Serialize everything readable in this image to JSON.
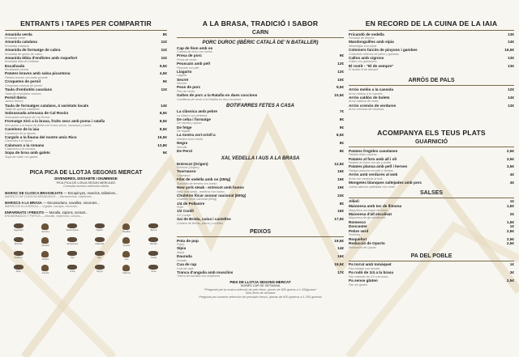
{
  "colors": {
    "background": "#f8f6f1",
    "text": "#1c1c1c",
    "sub": "#7a7a7a",
    "deco": "#d9c9a6"
  },
  "col1": {
    "title": "ENTRANTS I TAPES PER COMPARTIR",
    "items": [
      {
        "name": "Amanida verda",
        "price": "8€",
        "sub": "Ensalada verde"
      },
      {
        "name": "Amanida catalana",
        "price": "11€",
        "sub": "Ensalada catalana"
      },
      {
        "name": "Amanida de formatge de cabra",
        "price": "11€",
        "sub": "Ensalada de queso de cabra"
      },
      {
        "name": "Amanida tèbia d'endívies amb roquefort",
        "price": "11€",
        "sub": "Ensalada tibia de endivias"
      },
      {
        "name": "Escalivada",
        "price": "9,5€",
        "sub": "Escalivada casera"
      },
      {
        "name": "Patates braves amb salsa picantona",
        "price": "4,5€",
        "sub": "Patatas bravas con salsa picante"
      },
      {
        "name": "Croquetes de pernil",
        "price": "9€",
        "sub": "Croquetas caseras de jamón"
      },
      {
        "name": "Taula d'embotits casolans",
        "price": "11€",
        "sub": "Tabla de embutidos caseros"
      },
      {
        "name": "Pernil Ibèric",
        "price": "",
        "sub": "Jamón Ibérico"
      },
      {
        "name": "Taula de formatges catalans, 4 varietats locals",
        "price": "14€",
        "sub": "Tabla de quesos catalanes"
      },
      {
        "name": "Sobrassada artesana de Cal Rovira",
        "price": "8,5€",
        "sub": "Sobrasada artesana de Cal Rovira"
      },
      {
        "name": "Formatge Xiró a la brasa, fruits secs amb poma i ratafia",
        "price": "8,5€",
        "sub": "Xiró queso a la brasa de Alella con frutos secos, manzana y ratafía"
      },
      {
        "name": "Canelons de la iaia",
        "price": "8,5€",
        "sub": "Canelones de la abuela"
      },
      {
        "name": "Cargols a la llauna del nostre amic Rico",
        "price": "16,5€",
        "sub": "Caracoles a la llauna"
      },
      {
        "name": "Calamars a la romana",
        "price": "12,8€",
        "sub": "Calamares a la romana"
      },
      {
        "name": "Sopa de brou amb galets",
        "price": "9€",
        "sub": "Sopa de caldo con galets"
      }
    ],
    "market": {
      "title": "PICA PICA DE LLOTJA SEGONS MERCAT",
      "line1": "DIVENDRES, DISSABTE I DIUMENGE",
      "line2": "PICA PICA DE LONJA SEGÚN MERCADO",
      "line3": "Consulta nuestra selección diaria",
      "entries": [
        {
          "main": "MARISC DE CLOSCA BRASSEJATS",
          "rest": " — Escopinyes, musclos, tallarines...",
          "sub": "MARISCO DE CONCHA BRASEADOS — Berberechos, mejillones..."
        },
        {
          "main": "MARISCS A LA BRASA",
          "rest": " — Escamarlans, navalles, escorxes...",
          "sub": "MARISCOS A LA BRASA — Cigalas, navajas, escorxas..."
        },
        {
          "main": "ENFARINATS I FREGITS",
          "rest": " — Moralla, sipions, sonsos...",
          "sub": "ENHARINADOS Y FRITOS — Moralla, chipirones, sonsos..."
        }
      ],
      "fish": [
        "Llagostins",
        "Gambes",
        "Escamarlans",
        "Cigales",
        "Navalles",
        "Sipions",
        "Musclos",
        "Cloïsses",
        "Escopinyes",
        "Calamars",
        "Sonsos",
        "Moralla",
        "Sardines",
        "Seitons",
        "Pop",
        "Rap",
        "Lluç",
        "Orada",
        "Sípia",
        "Gamba",
        "Cranc",
        "Cargol",
        "Tellerina",
        "Vieira"
      ]
    }
  },
  "col2": {
    "title": "A LA BRASA, TRADICIÓ I SABOR",
    "carn_title": "CARN",
    "porc_title": "PORC DUROC (IBÈRIC CATALÀ DE' N BATALLER)",
    "porc": [
      {
        "name": "Cap de llom amb os",
        "price": "",
        "sub": "Cabeza de lomo con hueso"
      },
      {
        "name": "Presa de porc",
        "price": "9€",
        "sub": "Presa de cerdo"
      },
      {
        "name": "Peuscats amb pell",
        "price": "12€",
        "sub": "Pescues con piel"
      },
      {
        "name": "Llagarto",
        "price": "12€",
        "sub": "Lagarto"
      },
      {
        "name": "Secret",
        "price": "10€",
        "sub": "Secreto"
      },
      {
        "name": "Peus de porc",
        "price": "9,5€",
        "sub": "Pies de cerdo"
      },
      {
        "name": "Galtes de porc a la Ratafia en dues coccions",
        "price": "10,5€",
        "sub": "Carrilleras de cerdo a la Ratafía en dos cocciones"
      }
    ],
    "bot_title": "BOTIFARRES FETES A CASA",
    "bot": [
      {
        "name": "La clàssica amb pebre",
        "price": "7€",
        "sub": "La clásica con pimienta"
      },
      {
        "name": "De ceba i formatge",
        "price": "8€",
        "sub": "De cebolla y queso"
      },
      {
        "name": "De fetge",
        "price": "9€",
        "sub": "De hígado"
      },
      {
        "name": "La nostra xori-crioll a",
        "price": "8,5€",
        "sub": "Nuestra chori-criolla"
      },
      {
        "name": "Negra",
        "price": "8€",
        "sub": "Morcilla"
      },
      {
        "name": "De Perol",
        "price": "8€",
        "sub": ""
      }
    ],
    "vedella_title": "XAI, VEDELLA I AUS A LA BRASA",
    "vedella": [
      {
        "name": "Entrecot (Origen)",
        "price": "12,5€",
        "sub": "Entrecot (Origen)"
      },
      {
        "name": "Tournasso",
        "price": "16€",
        "sub": "Churrasco"
      },
      {
        "name": "Filet de vedella amb os (250g)",
        "price": "19€",
        "sub": "Solomillo de ternera con hueso"
      },
      {
        "name": "New york steak - entrecot amb hueso",
        "price": "19€",
        "sub": "New York steak - entrecot con hueso"
      },
      {
        "name": "Chuleton fòcar asnour nacional (600g)",
        "price": "24€",
        "sub": "Chuletón fócar nacional (600g)"
      },
      {
        "name": "1/4 de Pollastre",
        "price": "8€",
        "sub": "Pollo"
      },
      {
        "name": "1/2 Conill",
        "price": "16€",
        "sub": "1/2 Conejo"
      },
      {
        "name": "Xai de Breda, cuixa i castelles",
        "price": "17,5€",
        "sub": "Cordero de Breda, pierna y costillas"
      }
    ],
    "peixos_title": "PEIXOS",
    "peixos": [
      {
        "name": "Pota de pop",
        "price": "19,5€",
        "sub": "Pulpo"
      },
      {
        "name": "Sípia",
        "price": "14€",
        "sub": "Sepia"
      },
      {
        "name": "Daurada",
        "price": "16€",
        "sub": "Dorada"
      },
      {
        "name": "Cua de rap",
        "price": "19,5€",
        "sub": "Cola de rape"
      },
      {
        "name": "Tranca d'anguila amb musclins",
        "price": "17€",
        "sub": "Tranca de bacalao con mejillones"
      }
    ],
    "peix_llotja": {
      "title": "PEIX DE LLOTJA SEGONS MERCAT",
      "line1": "NOMÉS CAP DE SETMANA",
      "line2": "*Preguntà per la nostra selecció de peix fresc, peces de 600 grams a 1.200grams*",
      "line3": "Sólo fines de semana",
      "line4": "Pregunta por nuestra selección de pescado fresco, piezas de 600 gramos a 1.200 gramos"
    }
  },
  "col3": {
    "title": "EN RECORD DE LA CUINA DE LA IAIA",
    "items": [
      {
        "name": "Fricandó de vedella",
        "price": "13€",
        "sub": "Fricandó de ternera"
      },
      {
        "name": "Mandonguilles amb sípia",
        "price": "14€",
        "sub": "Albóndigas con sepia"
      },
      {
        "name": "Colomers farcits de pinyons i gambes",
        "price": "16,5€",
        "sub": "Colomines rellenos de piñon y gambas"
      },
      {
        "name": "Callos amb cigrons",
        "price": "13€",
        "sub": "Callos con garbanzos"
      },
      {
        "name": "El rostit - “El de sempre”",
        "price": "13€",
        "sub": "El asado el de siempre"
      }
    ],
    "arros_title": "ARRÒS DE PALS",
    "arros": [
      {
        "name": "Arròs melós  a la cassola",
        "price": "12€",
        "sub": "Arroz meloso a la cazuela"
      },
      {
        "name": "Arròs caldós de bolets",
        "price": "14€",
        "sub": "Arroz caldoso de setas"
      },
      {
        "name": "Arròs cremós de verdures",
        "price": "13€",
        "sub": "Arroz cremoso de verduras"
      }
    ],
    "acomp_title": "ACOMPANYA ELS TEUS PLATS",
    "garnish_title": "GUARNICIÓ",
    "garnish": [
      {
        "name": "Patates fregides casolanes",
        "price": "2,5€",
        "sub": "Patatas fritas caseras"
      },
      {
        "name": "Patates al forn amb all i oli",
        "price": "3,5€",
        "sub": "Patatas al horno con ajo y aceite"
      },
      {
        "name": "Patates planxa amb pell i herves",
        "price": "3,5€",
        "sub": "Patatas plancha con piel y hierbas"
      },
      {
        "name": "Arròs amb verdures al wok",
        "price": "4€",
        "sub": "Arroz con verduras al wok"
      },
      {
        "name": "Mongetes blanques saltejades amb porc",
        "price": "4€",
        "sub": "Judías blancas salteadas con cerdo"
      }
    ],
    "salses_title": "SALSES",
    "salses": [
      {
        "name": "Allioli",
        "price": "1€",
        "sub": ""
      },
      {
        "name": "Maionesa amb toc de llimona",
        "price": "1,5€",
        "sub": "Mayonesa con toque de limón"
      },
      {
        "name": "Maionesa d'all escalivat",
        "price": "2€",
        "sub": "Mayonesa de ajo escalivado"
      },
      {
        "name": "Romesco",
        "price": "1,5€",
        "sub": ""
      },
      {
        "name": "Doncaster",
        "price": "1€",
        "sub": ""
      },
      {
        "name": "Pebre verd",
        "price": "2,5€",
        "sub": "Pimienta"
      },
      {
        "name": "Roquefort",
        "price": "2,5€",
        "sub": ""
      },
      {
        "name": "Reducció de Oporto",
        "price": "2,5€",
        "sub": "Reducción de Oporto"
      }
    ],
    "pa_title": "PA DEL POBLE",
    "pa": [
      {
        "name": "Pa torrat amb tomàquet",
        "price": "1€",
        "sub": "Pan tostado con tomate"
      },
      {
        "name": "Pa rodó de 1/4 a la brasa",
        "price": "3€",
        "sub": "Pan redondo de 1/4 a la brasa"
      },
      {
        "name": "Pa sense gluten",
        "price": "2,5€",
        "sub": "Pan sin gluten"
      }
    ]
  }
}
